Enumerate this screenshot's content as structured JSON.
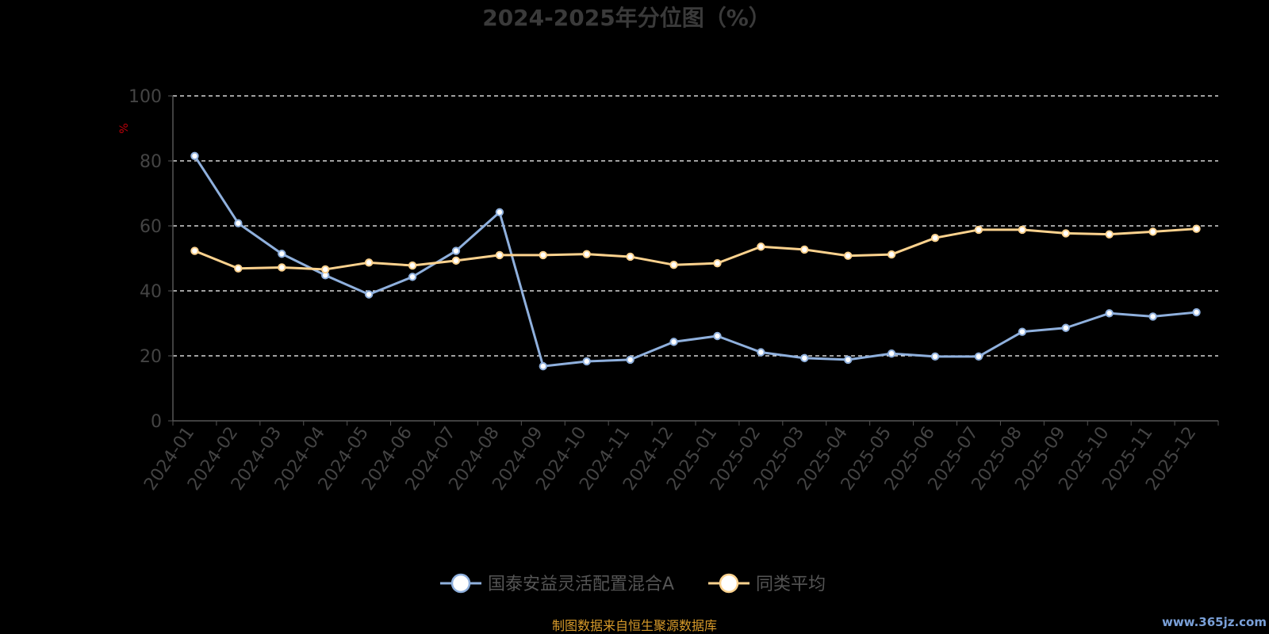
{
  "chart_data": {
    "type": "line",
    "title": "2024-2025年分位图（%）",
    "ylabel": "%",
    "xlabel": "",
    "ylim": [
      0,
      100
    ],
    "yticks": [
      0,
      20,
      40,
      60,
      80,
      100
    ],
    "grid": true,
    "legend_position": "bottom",
    "categories": [
      "2024-01",
      "2024-02",
      "2024-03",
      "2024-04",
      "2024-05",
      "2024-06",
      "2024-07",
      "2024-08",
      "2024-09",
      "2024-10",
      "2024-11",
      "2024-12",
      "2025-01",
      "2025-02",
      "2025-03",
      "2025-04",
      "2025-05",
      "2025-06",
      "2025-07",
      "2025-08",
      "2025-09",
      "2025-10",
      "2025-11",
      "2025-12"
    ],
    "series": [
      {
        "name": "国泰安益灵活配置混合A",
        "color": "#8fb0dd",
        "values": [
          81.5,
          60.8,
          51.4,
          44.8,
          38.9,
          44.3,
          52.3,
          64.2,
          16.8,
          18.3,
          18.8,
          24.3,
          26.1,
          21.1,
          19.3,
          18.8,
          20.7,
          19.8,
          19.8,
          27.4,
          28.6,
          33.1,
          32.1,
          33.4
        ]
      },
      {
        "name": "同类平均",
        "color": "#fcd28e",
        "values": [
          52.3,
          46.9,
          47.2,
          46.6,
          48.7,
          47.8,
          49.3,
          51.0,
          51.0,
          51.3,
          50.5,
          48.0,
          48.5,
          53.6,
          52.7,
          50.8,
          51.2,
          56.3,
          58.8,
          58.8,
          57.7,
          57.4,
          58.2,
          59.1
        ]
      }
    ]
  },
  "footer": {
    "source": "制图数据来自恒生聚源数据库",
    "watermark": "www.365jz.com"
  }
}
